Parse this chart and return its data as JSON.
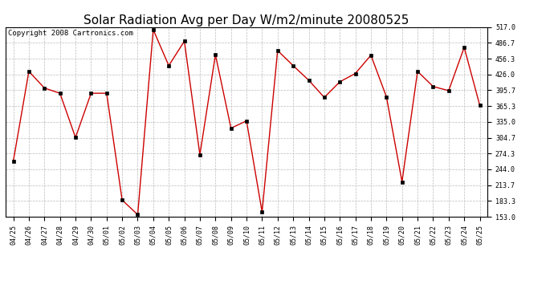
{
  "title": "Solar Radiation Avg per Day W/m2/minute 20080525",
  "copyright": "Copyright 2008 Cartronics.com",
  "dates": [
    "04/25",
    "04/26",
    "04/27",
    "04/28",
    "04/29",
    "04/30",
    "05/01",
    "05/02",
    "05/03",
    "05/04",
    "05/05",
    "05/06",
    "05/07",
    "05/08",
    "05/09",
    "05/10",
    "05/11",
    "05/12",
    "05/13",
    "05/14",
    "05/15",
    "05/16",
    "05/17",
    "05/18",
    "05/19",
    "05/20",
    "05/21",
    "05/22",
    "05/23",
    "05/24",
    "05/25"
  ],
  "values": [
    260,
    432,
    400,
    390,
    305,
    390,
    390,
    185,
    157,
    512,
    443,
    490,
    272,
    464,
    323,
    337,
    162,
    472,
    443,
    415,
    382,
    412,
    428,
    463,
    383,
    220,
    432,
    403,
    395,
    478,
    367
  ],
  "line_color": "#cc0000",
  "marker": "s",
  "marker_size": 2.5,
  "marker_color": "#000000",
  "marker_edge_color": "#000000",
  "line_width": 1.0,
  "bg_color": "#ffffff",
  "plot_bg_color": "#ffffff",
  "grid_color": "#bbbbbb",
  "grid_style": "--",
  "ylim": [
    153.0,
    517.0
  ],
  "yticks": [
    153.0,
    183.3,
    213.7,
    244.0,
    274.3,
    304.7,
    335.0,
    365.3,
    395.7,
    426.0,
    456.3,
    486.7,
    517.0
  ],
  "title_fontsize": 11,
  "tick_fontsize": 6,
  "copyright_fontsize": 6.5,
  "fig_width": 6.9,
  "fig_height": 3.75,
  "dpi": 100
}
